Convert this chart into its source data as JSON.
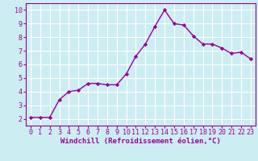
{
  "x": [
    0,
    1,
    2,
    3,
    4,
    5,
    6,
    7,
    8,
    9,
    10,
    11,
    12,
    13,
    14,
    15,
    16,
    17,
    18,
    19,
    20,
    21,
    22,
    23
  ],
  "y": [
    2.1,
    2.1,
    2.1,
    3.4,
    4.0,
    4.1,
    4.6,
    4.6,
    4.5,
    4.5,
    5.3,
    6.6,
    7.5,
    8.8,
    10.0,
    9.0,
    8.9,
    8.1,
    7.5,
    7.5,
    7.2,
    6.8,
    6.9,
    6.4
  ],
  "line_color": "#990099",
  "marker": "D",
  "markersize": 2.2,
  "linewidth": 1.0,
  "xlabel": "Windchill (Refroidissement éolien,°C)",
  "xlim": [
    -0.5,
    23.5
  ],
  "ylim": [
    1.5,
    10.5
  ],
  "yticks": [
    2,
    3,
    4,
    5,
    6,
    7,
    8,
    9,
    10
  ],
  "xticks": [
    0,
    1,
    2,
    3,
    4,
    5,
    6,
    7,
    8,
    9,
    10,
    11,
    12,
    13,
    14,
    15,
    16,
    17,
    18,
    19,
    20,
    21,
    22,
    23
  ],
  "background_color": "#cceef2",
  "grid_color": "#ffffff",
  "tick_color": "#990099",
  "label_color": "#990099",
  "xlabel_fontsize": 6.5,
  "tick_fontsize": 6.0
}
